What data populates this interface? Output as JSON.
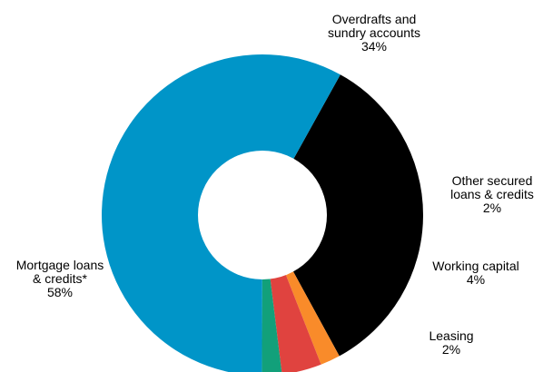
{
  "chart_data": {
    "type": "pie",
    "style": "donut",
    "title": "",
    "start_angle_deg": -61,
    "direction": "clockwise",
    "slices": [
      {
        "label_lines": [
          "Overdrafts and",
          "sundry accounts"
        ],
        "value_label": "34%",
        "value": 34,
        "color": "#000000"
      },
      {
        "label_lines": [
          "Other secured",
          "loans & credits"
        ],
        "value_label": "2%",
        "value": 2,
        "color": "#f98b2a"
      },
      {
        "label_lines": [
          "Working capital"
        ],
        "value_label": "4%",
        "value": 4,
        "color": "#e0433f"
      },
      {
        "label_lines": [
          "Leasing"
        ],
        "value_label": "2%",
        "value": 2,
        "color": "#12a07a"
      },
      {
        "label_lines": [
          "Mortgage loans",
          "& credits*"
        ],
        "value_label": "58%",
        "value": 58,
        "color": "#0095c8"
      }
    ]
  }
}
